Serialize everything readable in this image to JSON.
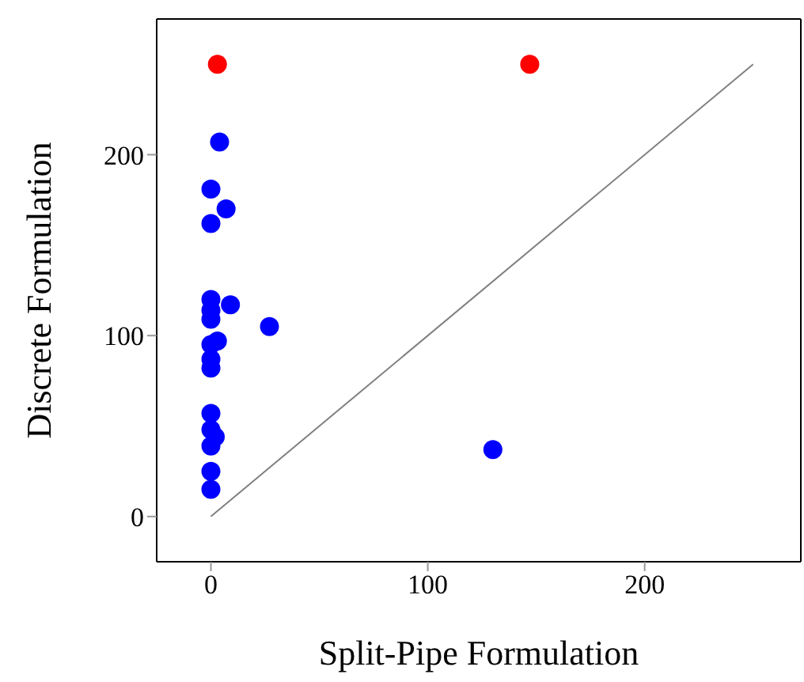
{
  "chart_data": {
    "type": "scatter",
    "xlabel": "Split-Pipe Formulation",
    "ylabel": "Discrete Formulation",
    "xlim": [
      -25,
      272
    ],
    "ylim": [
      -25,
      275
    ],
    "xticks": [
      0,
      100,
      200
    ],
    "yticks": [
      0,
      100,
      200
    ],
    "marker": "circle",
    "series": [
      {
        "color": "#0000ff",
        "x": [
          4,
          0,
          7,
          0,
          0,
          0,
          9,
          0,
          27,
          3,
          0,
          0,
          0,
          0,
          0,
          2,
          0,
          0,
          0,
          130
        ],
        "values": [
          207,
          181,
          170,
          162,
          120,
          114,
          117,
          109,
          105,
          97,
          95,
          87,
          82,
          57,
          48,
          44,
          39,
          25,
          15,
          37
        ]
      },
      {
        "color": "#ff0000",
        "x": [
          3,
          147
        ],
        "values": [
          250,
          250
        ]
      },
      {
        "type": "line",
        "color": "#808080",
        "line_style": "solid",
        "marker": "none",
        "x": [
          0,
          250
        ],
        "values": [
          0,
          250
        ]
      }
    ]
  }
}
